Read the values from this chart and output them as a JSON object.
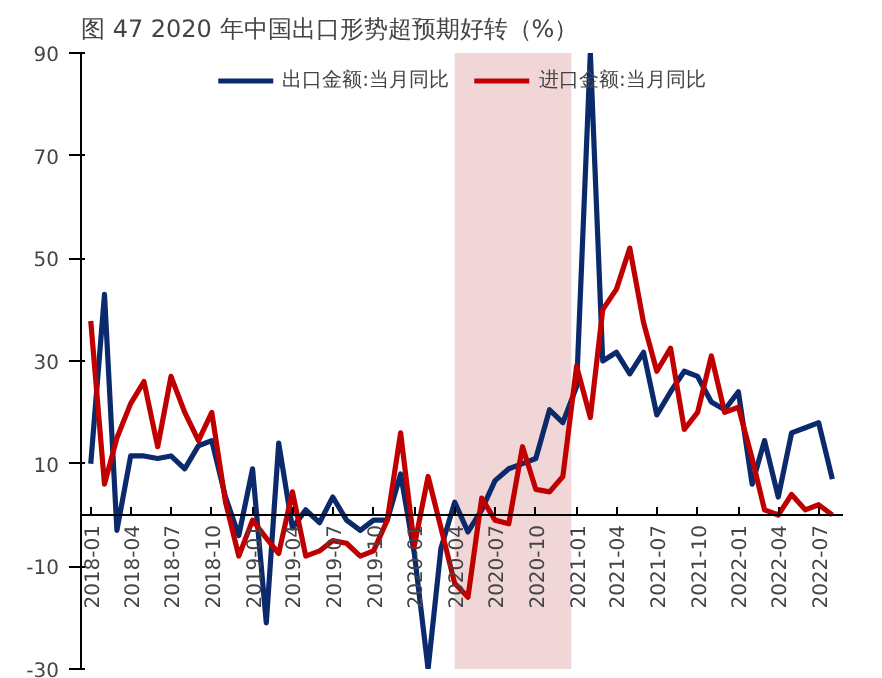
{
  "chart_data": {
    "type": "line",
    "title": "图 47   2020 年中国出口形势超预期好转（%）",
    "x": [
      "2018-01",
      "2018-02",
      "2018-03",
      "2018-04",
      "2018-05",
      "2018-06",
      "2018-07",
      "2018-08",
      "2018-09",
      "2018-10",
      "2018-11",
      "2018-12",
      "2019-01",
      "2019-02",
      "2019-03",
      "2019-04",
      "2019-05",
      "2019-06",
      "2019-07",
      "2019-08",
      "2019-09",
      "2019-10",
      "2019-11",
      "2019-12",
      "2020-01",
      "2020-02",
      "2020-03",
      "2020-04",
      "2020-05",
      "2020-06",
      "2020-07",
      "2020-08",
      "2020-09",
      "2020-10",
      "2020-11",
      "2020-12",
      "2021-01",
      "2021-02",
      "2021-03",
      "2021-04",
      "2021-05",
      "2021-06",
      "2021-07",
      "2021-08",
      "2021-09",
      "2021-10",
      "2021-11",
      "2021-12",
      "2022-01",
      "2022-02",
      "2022-03",
      "2022-04",
      "2022-05",
      "2022-06",
      "2022-07",
      "2022-08"
    ],
    "series": [
      {
        "name": "出口金额:当月同比",
        "color": "#0b2a6b",
        "values": [
          10,
          43,
          -3,
          11.5,
          11.5,
          11,
          11.5,
          9,
          13.5,
          14.5,
          3.5,
          -4,
          9,
          -21,
          14,
          -2.5,
          1,
          -1.5,
          3.5,
          -1,
          -3,
          -1,
          -1,
          8,
          -7.5,
          -30,
          -6.5,
          2.5,
          -3.3,
          1,
          6.7,
          9,
          10,
          11,
          20.5,
          18,
          25,
          90,
          30,
          31.7,
          27.5,
          31.7,
          19.5,
          24,
          28,
          27,
          22,
          20.5,
          24,
          6,
          14.5,
          3.5,
          16,
          17,
          18,
          7
        ]
      },
      {
        "name": "进口金额:当月同比",
        "color": "#c00000",
        "values": [
          37.8,
          6,
          15,
          21.7,
          26,
          13.3,
          27,
          20,
          14.5,
          20,
          2.5,
          -8,
          -1,
          -4.5,
          -7.5,
          4.5,
          -8,
          -7,
          -5,
          -5.5,
          -8,
          -7,
          -1,
          16,
          -6,
          7.5,
          -2.5,
          -13.3,
          -16,
          3.3,
          -1,
          -1.7,
          13.3,
          5,
          4.5,
          7.5,
          29,
          19,
          40,
          44,
          52,
          37.5,
          28,
          32.5,
          16.7,
          20,
          31,
          20,
          21,
          11,
          1,
          0,
          4,
          1,
          2,
          0
        ]
      }
    ],
    "xlim": [
      "2017-12-10",
      "2022-08-25"
    ],
    "xticks": [
      "2018-01",
      "2018-04",
      "2018-07",
      "2018-10",
      "2019-01",
      "2019-04",
      "2019-07",
      "2019-10",
      "2020-01",
      "2020-04",
      "2020-07",
      "2020-10",
      "2021-01",
      "2021-04",
      "2021-07",
      "2021-10",
      "2022-01",
      "2022-04",
      "2022-07"
    ],
    "ylim": [
      -30,
      90
    ],
    "yticks": [
      -30,
      -10,
      10,
      30,
      50,
      70,
      90
    ],
    "bands": [
      {
        "axis": "x",
        "from": "2020-04",
        "to": "2020-12-20",
        "color": "#f0d6d6"
      }
    ],
    "legend": "top",
    "grid": false,
    "marker": "none",
    "line_style": "solid"
  }
}
